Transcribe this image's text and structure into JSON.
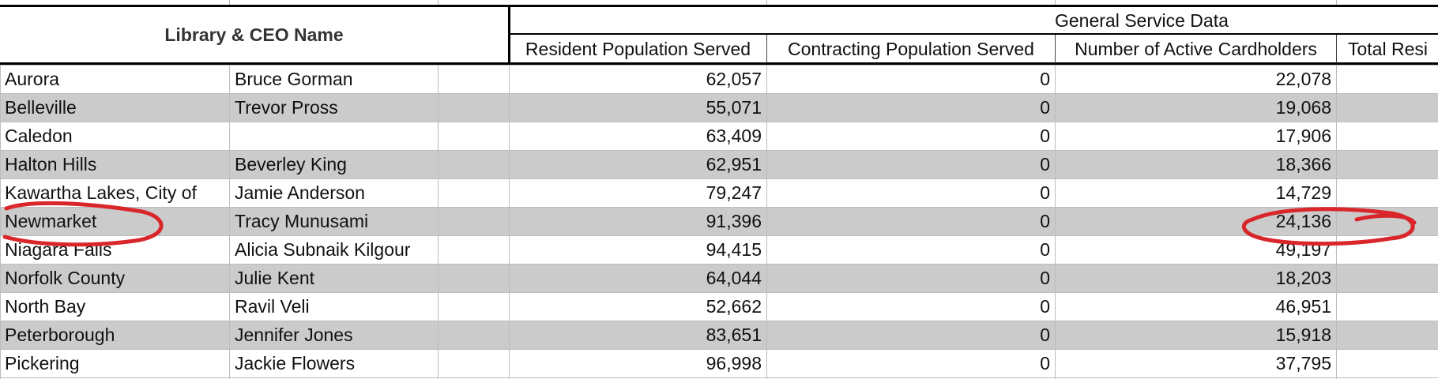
{
  "header": {
    "library_ceo_title": "Library & CEO Name",
    "group_title": "General Service Data",
    "columns": [
      "Resident Population Served",
      "Contracting Population Served",
      "Number of Active Cardholders",
      "Total Resi"
    ]
  },
  "rows": [
    {
      "library": "Aurora",
      "ceo": "Bruce Gorman",
      "resident": "62,057",
      "contracting": "0",
      "cardholders": "22,078"
    },
    {
      "library": "Belleville",
      "ceo": "Trevor Pross",
      "resident": "55,071",
      "contracting": "0",
      "cardholders": "19,068"
    },
    {
      "library": "Caledon",
      "ceo": "",
      "resident": "63,409",
      "contracting": "0",
      "cardholders": "17,906"
    },
    {
      "library": "Halton Hills",
      "ceo": "Beverley King",
      "resident": "62,951",
      "contracting": "0",
      "cardholders": "18,366"
    },
    {
      "library": "Kawartha Lakes, City of",
      "ceo": "Jamie Anderson",
      "resident": "79,247",
      "contracting": "0",
      "cardholders": "14,729"
    },
    {
      "library": "Newmarket",
      "ceo": "Tracy Munusami",
      "resident": "91,396",
      "contracting": "0",
      "cardholders": "24,136"
    },
    {
      "library": "Niagara Falls",
      "ceo": "Alicia Subnaik Kilgour",
      "resident": "94,415",
      "contracting": "0",
      "cardholders": "49,197"
    },
    {
      "library": "Norfolk County",
      "ceo": "Julie Kent",
      "resident": "64,044",
      "contracting": "0",
      "cardholders": "18,203"
    },
    {
      "library": "North Bay",
      "ceo": "Ravil Veli",
      "resident": "52,662",
      "contracting": "0",
      "cardholders": "46,951"
    },
    {
      "library": "Peterborough",
      "ceo": "Jennifer Jones",
      "resident": "83,651",
      "contracting": "0",
      "cardholders": "15,918"
    },
    {
      "library": "Pickering",
      "ceo": "Jackie Flowers",
      "resident": "96,998",
      "contracting": "0",
      "cardholders": "37,795"
    }
  ],
  "colors": {
    "band_gray": "#cbcbcb",
    "annotation_red": "#d9262b"
  },
  "annotations": [
    {
      "type": "circle",
      "target": "Newmarket"
    },
    {
      "type": "circle",
      "target": "24,136"
    }
  ]
}
